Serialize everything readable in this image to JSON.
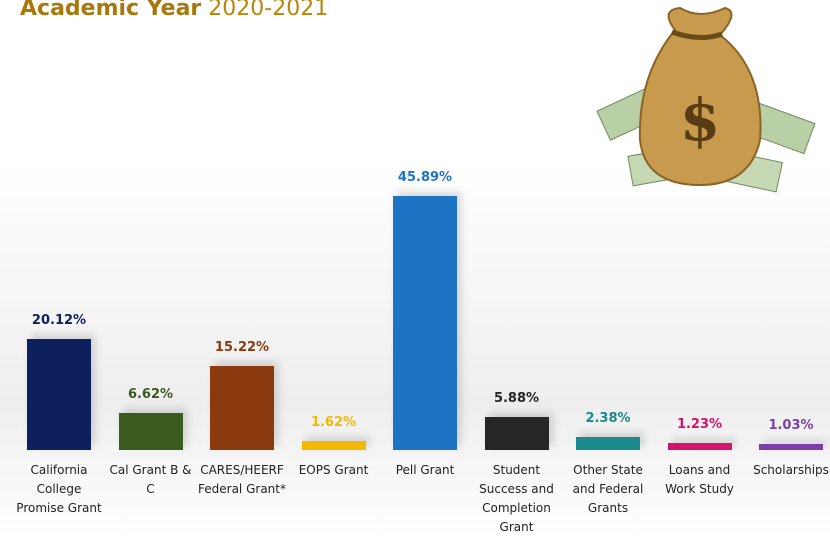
{
  "chart_data": {
    "type": "bar",
    "title": "Academic Year",
    "subtitle": "2020-2021",
    "categories": [
      "California College Promise Grant",
      "Cal Grant B & C",
      "CARES/HEERF Federal Grant*",
      "EOPS Grant",
      "Pell Grant",
      "Student Success and Completion Grant",
      "Other State and Federal Grants",
      "Loans and Work Study",
      "Scholarships"
    ],
    "values": [
      20.12,
      6.62,
      15.22,
      1.62,
      45.89,
      5.88,
      2.38,
      1.23,
      1.03
    ],
    "value_labels": [
      "20.12%",
      "6.62%",
      "15.22%",
      "1.62%",
      "45.89%",
      "5.88%",
      "2.38%",
      "1.23%",
      "1.03%"
    ],
    "colors": [
      "#0d1f5c",
      "#3b5a20",
      "#8b3a0f",
      "#f5b800",
      "#1e74c4",
      "#262626",
      "#1a8a8a",
      "#d6136b",
      "#7a3fa8"
    ]
  }
}
